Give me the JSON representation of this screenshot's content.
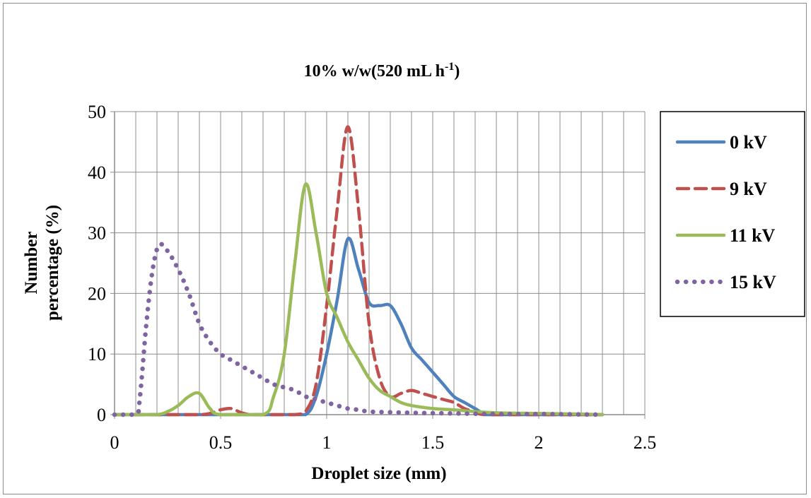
{
  "chart_data": {
    "type": "line",
    "title_main": "10% w/w(520 mL h",
    "title_sup": "-1",
    "title_end": ")",
    "xlabel": "Droplet size (mm)",
    "ylabel_line1": "Number",
    "ylabel_line2": "percentage (%)",
    "xlim": [
      0,
      2.5
    ],
    "ylim": [
      0,
      50
    ],
    "xticks": [
      "0",
      "0.5",
      "1",
      "1.5",
      "2",
      "2.5"
    ],
    "yticks": [
      "0",
      "10",
      "20",
      "30",
      "40",
      "50"
    ],
    "grid": true,
    "legend_position": "right",
    "series": [
      {
        "name": "0 kV",
        "color": "#4f81bd",
        "style": "solid",
        "points": [
          [
            0,
            0
          ],
          [
            0.1,
            0
          ],
          [
            0.2,
            0
          ],
          [
            0.3,
            0
          ],
          [
            0.4,
            0
          ],
          [
            0.5,
            0
          ],
          [
            0.6,
            0
          ],
          [
            0.7,
            0
          ],
          [
            0.8,
            0
          ],
          [
            0.9,
            0
          ],
          [
            0.95,
            3
          ],
          [
            1.0,
            10
          ],
          [
            1.05,
            19
          ],
          [
            1.1,
            29
          ],
          [
            1.15,
            24
          ],
          [
            1.2,
            18.5
          ],
          [
            1.25,
            18
          ],
          [
            1.3,
            18
          ],
          [
            1.35,
            15
          ],
          [
            1.4,
            11
          ],
          [
            1.45,
            9
          ],
          [
            1.5,
            7
          ],
          [
            1.55,
            5
          ],
          [
            1.6,
            3
          ],
          [
            1.65,
            2
          ],
          [
            1.7,
            1
          ],
          [
            1.75,
            0
          ],
          [
            1.8,
            0
          ],
          [
            2.0,
            0
          ],
          [
            2.3,
            0
          ]
        ]
      },
      {
        "name": "9 kV",
        "color": "#c0504d",
        "style": "dash",
        "points": [
          [
            0,
            0
          ],
          [
            0.1,
            0
          ],
          [
            0.2,
            0
          ],
          [
            0.3,
            0
          ],
          [
            0.4,
            0
          ],
          [
            0.45,
            0.2
          ],
          [
            0.5,
            0.8
          ],
          [
            0.55,
            1
          ],
          [
            0.6,
            0.3
          ],
          [
            0.65,
            0
          ],
          [
            0.8,
            0
          ],
          [
            0.85,
            0
          ],
          [
            0.9,
            0.5
          ],
          [
            0.95,
            5
          ],
          [
            1.0,
            18
          ],
          [
            1.05,
            34
          ],
          [
            1.1,
            47.5
          ],
          [
            1.15,
            34
          ],
          [
            1.2,
            15
          ],
          [
            1.25,
            6
          ],
          [
            1.3,
            3
          ],
          [
            1.35,
            3.5
          ],
          [
            1.4,
            4
          ],
          [
            1.45,
            3.5
          ],
          [
            1.5,
            3
          ],
          [
            1.55,
            2.5
          ],
          [
            1.6,
            2
          ],
          [
            1.65,
            1
          ],
          [
            1.7,
            0.5
          ],
          [
            1.75,
            0
          ],
          [
            2.0,
            0
          ],
          [
            2.3,
            0
          ]
        ]
      },
      {
        "name": "11 kV",
        "color": "#9bbb59",
        "style": "solid",
        "points": [
          [
            0,
            0
          ],
          [
            0.1,
            0
          ],
          [
            0.2,
            0
          ],
          [
            0.25,
            0.5
          ],
          [
            0.3,
            1.5
          ],
          [
            0.35,
            3
          ],
          [
            0.4,
            3.5
          ],
          [
            0.45,
            1
          ],
          [
            0.5,
            0
          ],
          [
            0.7,
            0
          ],
          [
            0.75,
            3
          ],
          [
            0.8,
            10
          ],
          [
            0.85,
            25
          ],
          [
            0.9,
            38
          ],
          [
            0.95,
            30
          ],
          [
            1.0,
            20
          ],
          [
            1.05,
            16
          ],
          [
            1.1,
            12
          ],
          [
            1.15,
            9
          ],
          [
            1.2,
            6
          ],
          [
            1.25,
            4
          ],
          [
            1.3,
            3
          ],
          [
            1.35,
            2
          ],
          [
            1.4,
            1.5
          ],
          [
            1.5,
            1
          ],
          [
            1.6,
            0.8
          ],
          [
            1.7,
            0.5
          ],
          [
            1.8,
            0.3
          ],
          [
            2.0,
            0.2
          ],
          [
            2.2,
            0.1
          ],
          [
            2.3,
            0
          ]
        ]
      },
      {
        "name": "15 kV",
        "color": "#8064a2",
        "style": "dot",
        "points": [
          [
            0,
            0
          ],
          [
            0.1,
            0
          ],
          [
            0.12,
            3
          ],
          [
            0.15,
            15
          ],
          [
            0.18,
            24
          ],
          [
            0.21,
            28
          ],
          [
            0.25,
            27
          ],
          [
            0.3,
            24
          ],
          [
            0.35,
            20
          ],
          [
            0.4,
            15
          ],
          [
            0.45,
            12
          ],
          [
            0.5,
            10
          ],
          [
            0.55,
            9
          ],
          [
            0.6,
            8
          ],
          [
            0.65,
            7
          ],
          [
            0.7,
            6
          ],
          [
            0.75,
            5
          ],
          [
            0.8,
            4.5
          ],
          [
            0.85,
            4
          ],
          [
            0.9,
            3
          ],
          [
            0.95,
            2.5
          ],
          [
            1.0,
            2
          ],
          [
            1.05,
            1.5
          ],
          [
            1.1,
            1
          ],
          [
            1.15,
            0.8
          ],
          [
            1.2,
            0.5
          ],
          [
            1.3,
            0.4
          ],
          [
            1.4,
            0.3
          ],
          [
            1.6,
            0.2
          ],
          [
            1.8,
            0.1
          ],
          [
            2.0,
            0.1
          ],
          [
            2.3,
            0
          ]
        ]
      }
    ]
  }
}
